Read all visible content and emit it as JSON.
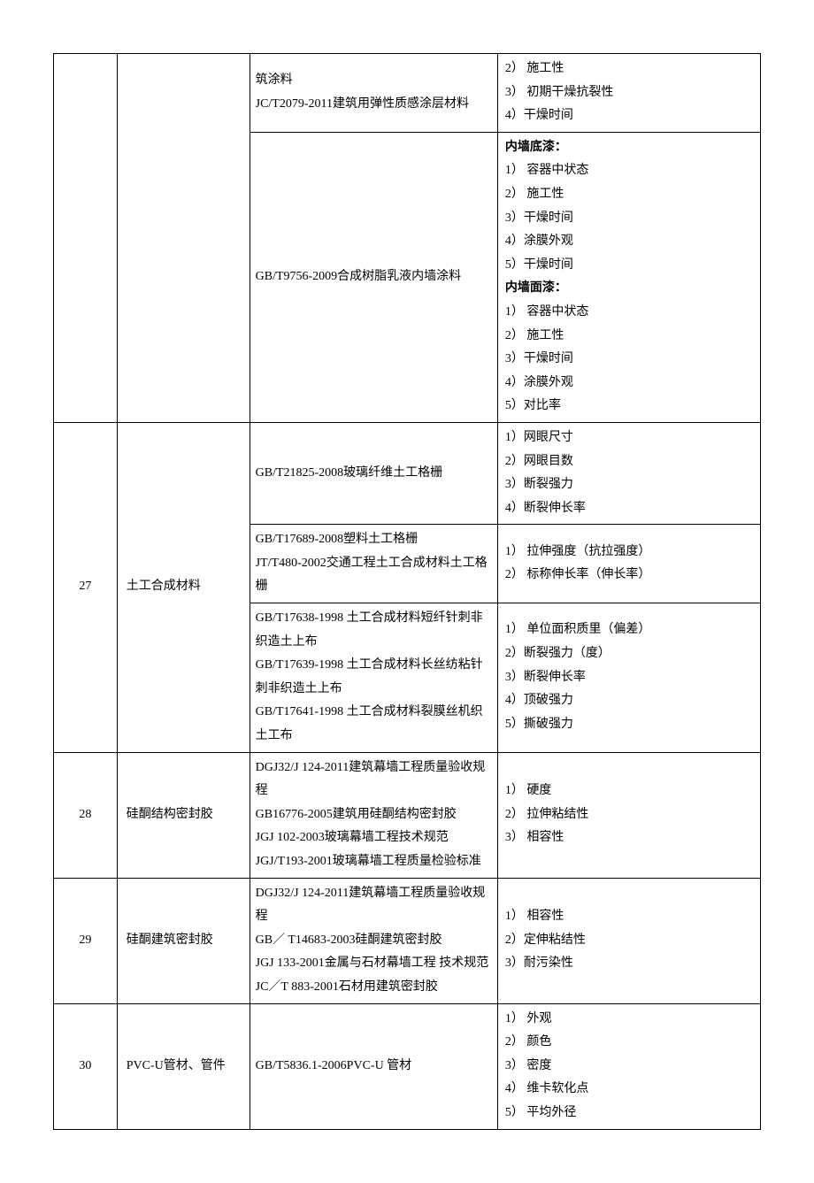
{
  "layout": {
    "background_color": "#ffffff",
    "border_color": "#000000",
    "text_color": "#000000",
    "font_family": "SimSun",
    "font_size_pt": 10.5,
    "line_height": 1.9,
    "col_widths_pct": [
      8,
      18,
      36,
      38
    ]
  },
  "rows": [
    {
      "num": "",
      "material": "",
      "subrows": [
        {
          "standard": "筑涂料\nJC/T2079-2011建筑用弹性质感涂层材料",
          "items": "2）  施工性\n3）  初期干燥抗裂性\n4）干燥时间"
        },
        {
          "standard": "GB/T9756-2009合成树脂乳液内墙涂料",
          "items_parts": [
            {
              "text": "内墙底漆：",
              "bold": true
            },
            {
              "text": "1）  容器中状态"
            },
            {
              "text": "2）  施工性"
            },
            {
              "text": "3）干燥时间"
            },
            {
              "text": "4）涂膜外观"
            },
            {
              "text": "5）干燥时间"
            },
            {
              "text": "内墙面漆：",
              "bold": true
            },
            {
              "text": "1）  容器中状态"
            },
            {
              "text": "2）  施工性"
            },
            {
              "text": "3）干燥时间"
            },
            {
              "text": "4）涂膜外观"
            },
            {
              "text": "5）对比率"
            }
          ]
        }
      ]
    },
    {
      "num": "27",
      "material": "土工合成材料",
      "subrows": [
        {
          "standard": "GB/T21825-2008玻璃纤维土工格栅",
          "items": "1）网眼尺寸\n2）网眼目数\n3）断裂强力\n4）断裂伸长率"
        },
        {
          "standard": "GB/T17689-2008塑料土工格栅\nJT/T480-2002交通工程土工合成材料土工格栅",
          "items": "1）  拉伸强度（抗拉强度）\n2）  标称伸长率（伸长率）"
        },
        {
          "standard": "GB/T17638-1998 土工合成材料短纤针刺非织造土上布\nGB/T17639-1998 土工合成材料长丝纺粘针刺非织造土上布\nGB/T17641-1998 土工合成材料裂膜丝机织土工布",
          "items": "1）  单位面积质里（偏差）\n2）断裂强力（度）\n3）断裂伸长率\n4）顶破强力\n5）撕破强力"
        }
      ]
    },
    {
      "num": "28",
      "material": "硅酮结构密封胶",
      "subrows": [
        {
          "standard": "DGJ32/J 124-2011建筑幕墙工程质量验收规程\nGB16776-2005建筑用硅酮结构密封胶\nJGJ 102-2003玻璃幕墙工程技术规范\nJGJ/T193-2001玻璃幕墙工程质量检验标准",
          "items": "1）  硬度\n2）  拉伸粘结性\n3）  相容性"
        }
      ]
    },
    {
      "num": "29",
      "material": "硅酮建筑密封胶",
      "subrows": [
        {
          "standard": "DGJ32/J 124-2011建筑幕墙工程质量验收规程\nGB／ T14683-2003硅酮建筑密封胶\nJGJ 133-2001金属与石材幕墙工程  技术规范\nJC／T 883-2001石材用建筑密封胶",
          "items": "1）  相容性\n2）定伸粘结性\n3）耐污染性"
        }
      ]
    },
    {
      "num": "30",
      "material": "PVC-U管材、管件",
      "subrows": [
        {
          "standard": "GB/T5836.1-2006PVC-U 管材",
          "items": "1）  外观\n2）  颜色\n3）  密度\n4）  维卡软化点\n5）  平均外径"
        }
      ]
    }
  ]
}
